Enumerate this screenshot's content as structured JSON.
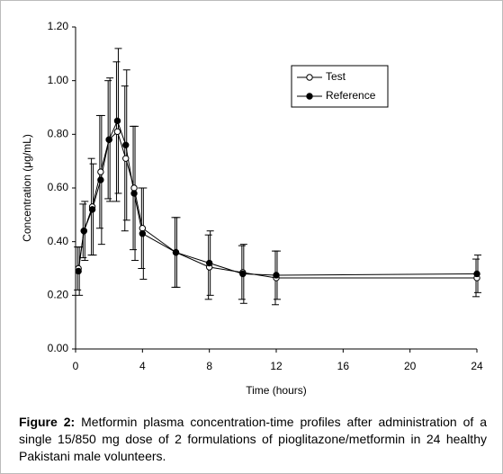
{
  "chart_data": {
    "type": "line",
    "xlabel": "Time (hours)",
    "ylabel": "Concentration (μg/mL)",
    "x": [
      0.17,
      0.5,
      1,
      1.5,
      2,
      2.5,
      3,
      3.5,
      4,
      6,
      8,
      10,
      12,
      24
    ],
    "series": [
      {
        "name": "Test",
        "color": "#000000",
        "marker": "open",
        "values": [
          0.3,
          0.44,
          0.53,
          0.66,
          0.78,
          0.81,
          0.71,
          0.6,
          0.45,
          0.36,
          0.305,
          0.285,
          0.265,
          0.265
        ],
        "errors": [
          0.08,
          0.1,
          0.18,
          0.21,
          0.22,
          0.26,
          0.27,
          0.23,
          0.15,
          0.13,
          0.12,
          0.1,
          0.1,
          0.07
        ]
      },
      {
        "name": "Reference",
        "color": "#000000",
        "marker": "filled",
        "values": [
          0.29,
          0.44,
          0.52,
          0.63,
          0.78,
          0.85,
          0.76,
          0.58,
          0.43,
          0.36,
          0.32,
          0.28,
          0.275,
          0.28
        ],
        "errors": [
          0.09,
          0.11,
          0.17,
          0.24,
          0.23,
          0.27,
          0.28,
          0.25,
          0.17,
          0.13,
          0.12,
          0.11,
          0.09,
          0.07
        ]
      }
    ],
    "xlim": [
      0,
      24
    ],
    "xticks": [
      0,
      4,
      8,
      12,
      16,
      20,
      24
    ],
    "ylim": [
      0,
      1.2
    ],
    "yticks": [
      {
        "value": 0,
        "label": "0.00"
      },
      {
        "value": 0.2,
        "label": "0.20"
      },
      {
        "value": 0.4,
        "label": "0.40"
      },
      {
        "value": 0.6,
        "label": "0.60"
      },
      {
        "value": 0.8,
        "label": "0.80"
      },
      {
        "value": 1.0,
        "label": "1.00"
      },
      {
        "value": 1.2,
        "label": "1.20"
      }
    ],
    "legend": "upper right",
    "caption": {
      "label": "Figure 2:",
      "text": "Metformin plasma concentration-time profiles after administration of a single 15/850 mg dose of 2 formulations of pioglitazone/metformin in 24 healthy Pakistani male volunteers."
    }
  }
}
